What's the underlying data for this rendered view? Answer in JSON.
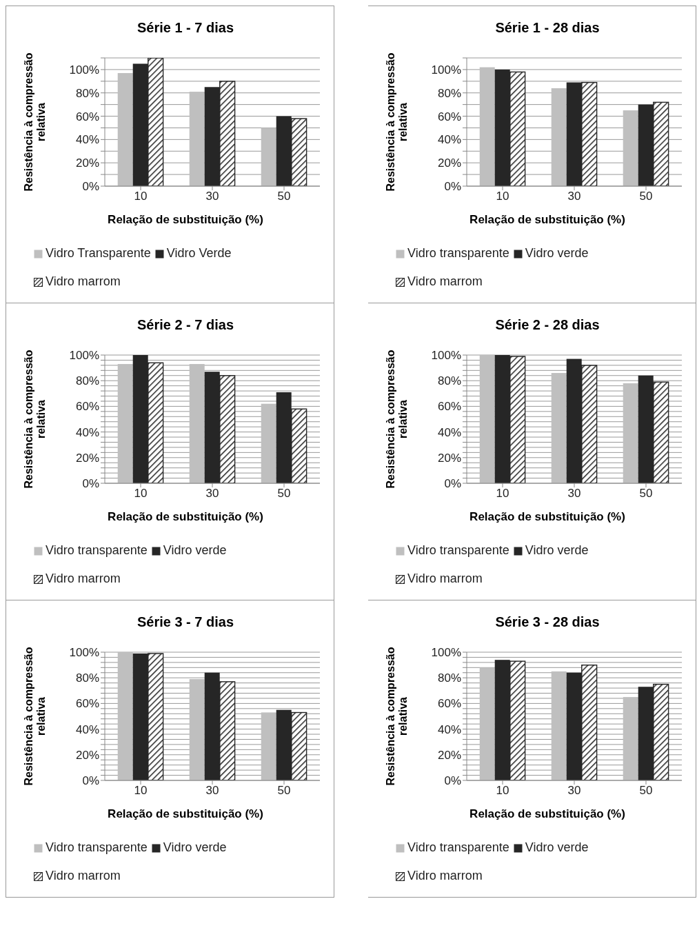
{
  "chart_data": [
    {
      "type": "bar",
      "title": "Série 1 - 7 dias",
      "xlabel": "Relação de substituição (%)",
      "ylabel": "Resistência à compressão relativa",
      "categories": [
        "10",
        "30",
        "50"
      ],
      "series": [
        {
          "name": "Vidro Transparente",
          "color": "#bfbfbf",
          "values": [
            97,
            81,
            50
          ]
        },
        {
          "name": "Vidro Verde",
          "color": "#262626",
          "values": [
            105,
            85,
            60
          ]
        },
        {
          "name": "Vidro marrom",
          "color": "#222222",
          "values": [
            110,
            90,
            58
          ]
        }
      ],
      "ylim": [
        0,
        110
      ],
      "yticks": [
        {
          "value": 0,
          "label": "0%"
        },
        {
          "value": 10,
          "label": null
        },
        {
          "value": 20,
          "label": "20%"
        },
        {
          "value": 30,
          "label": null
        },
        {
          "value": 40,
          "label": "40%"
        },
        {
          "value": 50,
          "label": null
        },
        {
          "value": 60,
          "label": "60%"
        },
        {
          "value": 70,
          "label": null
        },
        {
          "value": 80,
          "label": "80%"
        },
        {
          "value": 90,
          "label": null
        },
        {
          "value": 100,
          "label": "100%"
        },
        {
          "value": 110,
          "label": null
        }
      ],
      "grid": "y",
      "legend": "bottom"
    },
    {
      "type": "bar",
      "title": "Série 1 - 28 dias",
      "xlabel": "Relação de substituição (%)",
      "ylabel": "Resistência à compressão relativa",
      "categories": [
        "10",
        "30",
        "50"
      ],
      "series": [
        {
          "name": "Vidro transparente",
          "color": "#bfbfbf",
          "values": [
            102,
            84,
            65
          ]
        },
        {
          "name": "Vidro verde",
          "color": "#262626",
          "values": [
            100,
            89,
            70
          ]
        },
        {
          "name": "Vidro marrom",
          "color": "#222222",
          "values": [
            98,
            89,
            72
          ]
        }
      ],
      "ylim": [
        0,
        110
      ],
      "yticks": [
        {
          "value": 0,
          "label": "0%"
        },
        {
          "value": 10,
          "label": null
        },
        {
          "value": 20,
          "label": "20%"
        },
        {
          "value": 30,
          "label": null
        },
        {
          "value": 40,
          "label": "40%"
        },
        {
          "value": 50,
          "label": null
        },
        {
          "value": 60,
          "label": "60%"
        },
        {
          "value": 70,
          "label": null
        },
        {
          "value": 80,
          "label": "80%"
        },
        {
          "value": 90,
          "label": null
        },
        {
          "value": 100,
          "label": "100%"
        },
        {
          "value": 110,
          "label": null
        }
      ],
      "grid": "y",
      "legend": "bottom"
    },
    {
      "type": "bar",
      "title": "Série 2 - 7 dias",
      "xlabel": "Relação de substituição (%)",
      "ylabel": "Resistência à compressão relativa",
      "categories": [
        "10",
        "30",
        "50"
      ],
      "series": [
        {
          "name": "Vidro transparente",
          "color": "#bfbfbf",
          "values": [
            93,
            93,
            62
          ]
        },
        {
          "name": "Vidro verde",
          "color": "#262626",
          "values": [
            100,
            87,
            71
          ]
        },
        {
          "name": "Vidro marrom",
          "color": "#222222",
          "values": [
            94,
            84,
            58
          ]
        }
      ],
      "ylim": [
        0,
        100
      ],
      "yticks": [
        {
          "value": 0,
          "label": "0%"
        },
        {
          "value": 4,
          "label": null
        },
        {
          "value": 8,
          "label": null
        },
        {
          "value": 12,
          "label": null
        },
        {
          "value": 16,
          "label": null
        },
        {
          "value": 20,
          "label": "20%"
        },
        {
          "value": 24,
          "label": null
        },
        {
          "value": 28,
          "label": null
        },
        {
          "value": 32,
          "label": null
        },
        {
          "value": 36,
          "label": null
        },
        {
          "value": 40,
          "label": "40%"
        },
        {
          "value": 44,
          "label": null
        },
        {
          "value": 48,
          "label": null
        },
        {
          "value": 52,
          "label": null
        },
        {
          "value": 56,
          "label": null
        },
        {
          "value": 60,
          "label": "60%"
        },
        {
          "value": 64,
          "label": null
        },
        {
          "value": 68,
          "label": null
        },
        {
          "value": 72,
          "label": null
        },
        {
          "value": 76,
          "label": null
        },
        {
          "value": 80,
          "label": "80%"
        },
        {
          "value": 84,
          "label": null
        },
        {
          "value": 88,
          "label": null
        },
        {
          "value": 92,
          "label": null
        },
        {
          "value": 96,
          "label": null
        },
        {
          "value": 100,
          "label": "100%"
        }
      ],
      "grid": "y",
      "legend": "bottom"
    },
    {
      "type": "bar",
      "title": "Série 2 - 28 dias",
      "xlabel": "Relação de substituição (%)",
      "ylabel": "Resistência à compressão relativa",
      "categories": [
        "10",
        "30",
        "50"
      ],
      "series": [
        {
          "name": "Vidro transparente",
          "color": "#bfbfbf",
          "values": [
            100,
            86,
            78
          ]
        },
        {
          "name": "Vidro verde",
          "color": "#262626",
          "values": [
            100,
            97,
            84
          ]
        },
        {
          "name": "Vidro marrom",
          "color": "#222222",
          "values": [
            99,
            92,
            79
          ]
        }
      ],
      "ylim": [
        0,
        100
      ],
      "yticks": [
        {
          "value": 0,
          "label": "0%"
        },
        {
          "value": 4,
          "label": null
        },
        {
          "value": 8,
          "label": null
        },
        {
          "value": 12,
          "label": null
        },
        {
          "value": 16,
          "label": null
        },
        {
          "value": 20,
          "label": "20%"
        },
        {
          "value": 24,
          "label": null
        },
        {
          "value": 28,
          "label": null
        },
        {
          "value": 32,
          "label": null
        },
        {
          "value": 36,
          "label": null
        },
        {
          "value": 40,
          "label": "40%"
        },
        {
          "value": 44,
          "label": null
        },
        {
          "value": 48,
          "label": null
        },
        {
          "value": 52,
          "label": null
        },
        {
          "value": 56,
          "label": null
        },
        {
          "value": 60,
          "label": "60%"
        },
        {
          "value": 64,
          "label": null
        },
        {
          "value": 68,
          "label": null
        },
        {
          "value": 72,
          "label": null
        },
        {
          "value": 76,
          "label": null
        },
        {
          "value": 80,
          "label": "80%"
        },
        {
          "value": 84,
          "label": null
        },
        {
          "value": 88,
          "label": null
        },
        {
          "value": 92,
          "label": null
        },
        {
          "value": 96,
          "label": null
        },
        {
          "value": 100,
          "label": "100%"
        }
      ],
      "grid": "y",
      "legend": "bottom"
    },
    {
      "type": "bar",
      "title": "Série 3 - 7 dias",
      "xlabel": "Relação de substituição (%)",
      "ylabel": "Resistência à compressão relativa",
      "categories": [
        "10",
        "30",
        "50"
      ],
      "series": [
        {
          "name": "Vidro transparente",
          "color": "#bfbfbf",
          "values": [
            100,
            79,
            53
          ]
        },
        {
          "name": "Vidro verde",
          "color": "#262626",
          "values": [
            99,
            84,
            55
          ]
        },
        {
          "name": "Vidro marrom",
          "color": "#222222",
          "values": [
            99,
            77,
            53
          ]
        }
      ],
      "ylim": [
        0,
        100
      ],
      "yticks": [
        {
          "value": 0,
          "label": "0%"
        },
        {
          "value": 4,
          "label": null
        },
        {
          "value": 8,
          "label": null
        },
        {
          "value": 12,
          "label": null
        },
        {
          "value": 16,
          "label": null
        },
        {
          "value": 20,
          "label": "20%"
        },
        {
          "value": 24,
          "label": null
        },
        {
          "value": 28,
          "label": null
        },
        {
          "value": 32,
          "label": null
        },
        {
          "value": 36,
          "label": null
        },
        {
          "value": 40,
          "label": "40%"
        },
        {
          "value": 44,
          "label": null
        },
        {
          "value": 48,
          "label": null
        },
        {
          "value": 52,
          "label": null
        },
        {
          "value": 56,
          "label": null
        },
        {
          "value": 60,
          "label": "60%"
        },
        {
          "value": 64,
          "label": null
        },
        {
          "value": 68,
          "label": null
        },
        {
          "value": 72,
          "label": null
        },
        {
          "value": 76,
          "label": null
        },
        {
          "value": 80,
          "label": "80%"
        },
        {
          "value": 84,
          "label": null
        },
        {
          "value": 88,
          "label": null
        },
        {
          "value": 92,
          "label": null
        },
        {
          "value": 96,
          "label": null
        },
        {
          "value": 100,
          "label": "100%"
        }
      ],
      "grid": "y",
      "legend": "bottom"
    },
    {
      "type": "bar",
      "title": "Série 3 - 28 dias",
      "xlabel": "Relação de substituição (%)",
      "ylabel": "Resistência à compressão relativa",
      "categories": [
        "10",
        "30",
        "50"
      ],
      "series": [
        {
          "name": "Vidro transparente",
          "color": "#bfbfbf",
          "values": [
            88,
            85,
            65
          ]
        },
        {
          "name": "Vidro verde",
          "color": "#262626",
          "values": [
            94,
            84,
            73
          ]
        },
        {
          "name": "Vidro marrom",
          "color": "#222222",
          "values": [
            93,
            90,
            75
          ]
        }
      ],
      "ylim": [
        0,
        100
      ],
      "yticks": [
        {
          "value": 0,
          "label": "0%"
        },
        {
          "value": 4,
          "label": null
        },
        {
          "value": 8,
          "label": null
        },
        {
          "value": 12,
          "label": null
        },
        {
          "value": 16,
          "label": null
        },
        {
          "value": 20,
          "label": "20%"
        },
        {
          "value": 24,
          "label": null
        },
        {
          "value": 28,
          "label": null
        },
        {
          "value": 32,
          "label": null
        },
        {
          "value": 36,
          "label": null
        },
        {
          "value": 40,
          "label": "40%"
        },
        {
          "value": 44,
          "label": null
        },
        {
          "value": 48,
          "label": null
        },
        {
          "value": 52,
          "label": null
        },
        {
          "value": 56,
          "label": null
        },
        {
          "value": 60,
          "label": "60%"
        },
        {
          "value": 64,
          "label": null
        },
        {
          "value": 68,
          "label": null
        },
        {
          "value": 72,
          "label": null
        },
        {
          "value": 76,
          "label": null
        },
        {
          "value": 80,
          "label": "80%"
        },
        {
          "value": 84,
          "label": null
        },
        {
          "value": 88,
          "label": null
        },
        {
          "value": 92,
          "label": null
        },
        {
          "value": 96,
          "label": null
        },
        {
          "value": 100,
          "label": "100%"
        }
      ],
      "grid": "y",
      "legend": "bottom"
    }
  ]
}
